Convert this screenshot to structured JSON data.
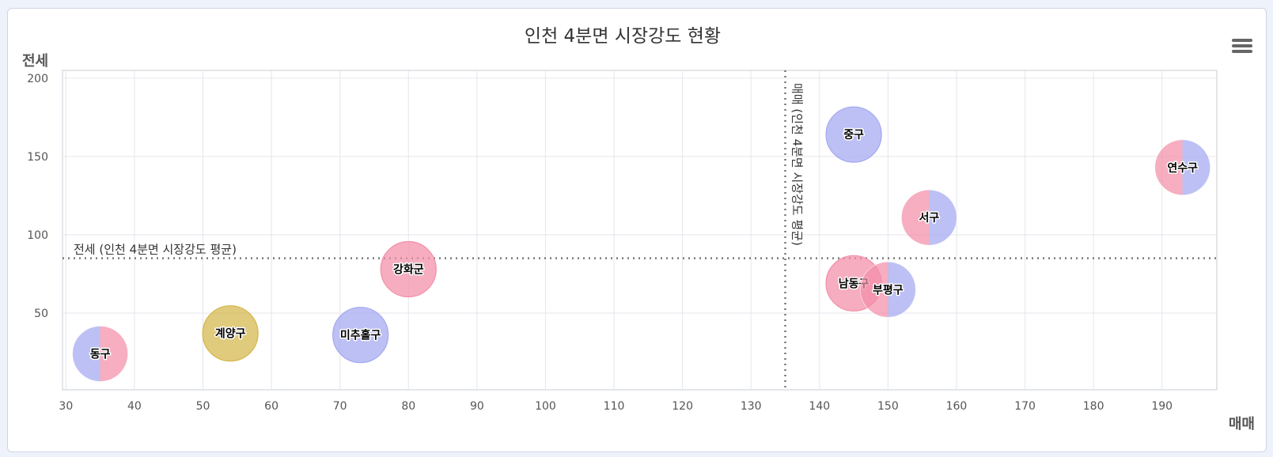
{
  "menu_icon": "hamburger-menu-icon",
  "chart_data": {
    "type": "scatter",
    "title": "인천 4분면 시장강도 현황",
    "xlabel": "매매",
    "ylabel": "전세",
    "xlim": [
      29.5,
      198
    ],
    "ylim": [
      1,
      205
    ],
    "x_ticks": [
      30,
      40,
      50,
      60,
      70,
      80,
      90,
      100,
      110,
      120,
      130,
      140,
      150,
      160,
      170,
      180,
      190
    ],
    "y_ticks": [
      50,
      100,
      150,
      200
    ],
    "grid": true,
    "reference_lines": [
      {
        "axis": "x",
        "value": 135,
        "label": "매매 (인천 4분면 시장강도 평균)"
      },
      {
        "axis": "y",
        "value": 85,
        "label": "전세 (인천 4분면 시장강도 평균)"
      }
    ],
    "colors": {
      "blue": "#a3a8f0",
      "pink": "#f38ea8",
      "gold": "#d4b64a"
    },
    "points": [
      {
        "name": "동구",
        "x": 35,
        "y": 24,
        "style": "split",
        "left": "blue",
        "right": "pink"
      },
      {
        "name": "계양구",
        "x": 54,
        "y": 37,
        "style": "solid",
        "color": "gold"
      },
      {
        "name": "미추홀구",
        "x": 73,
        "y": 36,
        "style": "solid",
        "color": "blue"
      },
      {
        "name": "강화군",
        "x": 80,
        "y": 78,
        "style": "solid",
        "color": "pink"
      },
      {
        "name": "중구",
        "x": 145,
        "y": 164,
        "style": "solid",
        "color": "blue"
      },
      {
        "name": "서구",
        "x": 156,
        "y": 111,
        "style": "split",
        "left": "pink",
        "right": "blue"
      },
      {
        "name": "남동구",
        "x": 145,
        "y": 69,
        "style": "solid",
        "color": "pink"
      },
      {
        "name": "부평구",
        "x": 150,
        "y": 65,
        "style": "split",
        "left": "pink",
        "right": "blue"
      },
      {
        "name": "연수구",
        "x": 193,
        "y": 143,
        "style": "split",
        "left": "pink",
        "right": "blue"
      }
    ]
  }
}
